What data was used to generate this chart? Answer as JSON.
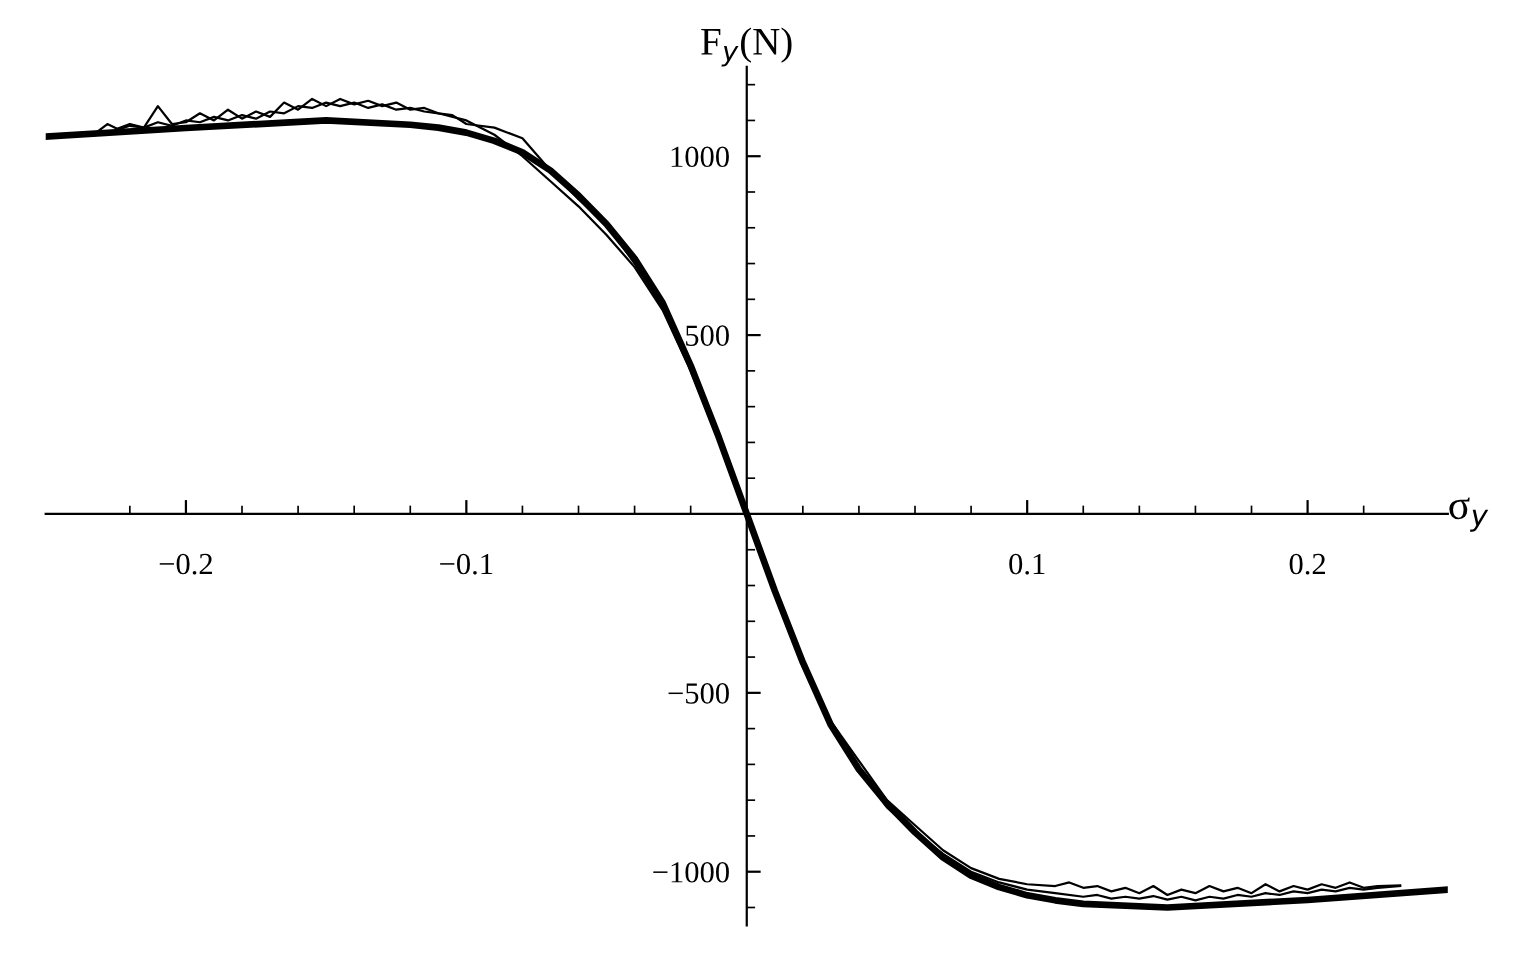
{
  "chart_data": {
    "type": "line",
    "xlabel": "σ$_{y}$",
    "ylabel": "F$_{y}$(N)",
    "xlim": [
      -0.25,
      0.25
    ],
    "ylim": [
      -1150,
      1250
    ],
    "xticks": [
      {
        "value": -0.2,
        "label": "−0.2"
      },
      {
        "value": -0.1,
        "label": "−0.1"
      },
      0.1,
      0.2,
      {
        "value": -0.22,
        "label": null
      },
      {
        "value": -0.18,
        "label": null
      },
      {
        "value": -0.16,
        "label": null
      },
      {
        "value": -0.14,
        "label": null
      },
      {
        "value": -0.12,
        "label": null
      },
      {
        "value": -0.08,
        "label": null
      },
      {
        "value": -0.06,
        "label": null
      },
      {
        "value": -0.04,
        "label": null
      },
      {
        "value": -0.02,
        "label": null
      },
      {
        "value": 0.02,
        "label": null
      },
      {
        "value": 0.04,
        "label": null
      },
      {
        "value": 0.06,
        "label": null
      },
      {
        "value": 0.08,
        "label": null
      },
      {
        "value": 0.12,
        "label": null
      },
      {
        "value": 0.14,
        "label": null
      },
      {
        "value": 0.16,
        "label": null
      },
      {
        "value": 0.18,
        "label": null
      },
      {
        "value": 0.22,
        "label": null
      }
    ],
    "yticks": [
      {
        "value": -1000,
        "label": "−1000"
      },
      {
        "value": -500,
        "label": "−500"
      },
      500,
      1000,
      {
        "value": -1100,
        "label": null
      },
      {
        "value": -900,
        "label": null
      },
      {
        "value": -800,
        "label": null
      },
      {
        "value": -700,
        "label": null
      },
      {
        "value": -600,
        "label": null
      },
      {
        "value": -400,
        "label": null
      },
      {
        "value": -300,
        "label": null
      },
      {
        "value": -200,
        "label": null
      },
      {
        "value": -100,
        "label": null
      },
      {
        "value": 100,
        "label": null
      },
      {
        "value": 200,
        "label": null
      },
      {
        "value": 300,
        "label": null
      },
      {
        "value": 400,
        "label": null
      },
      {
        "value": 600,
        "label": null
      },
      {
        "value": 700,
        "label": null
      },
      {
        "value": 800,
        "label": null
      },
      {
        "value": 900,
        "label": null
      },
      {
        "value": 1100,
        "label": null
      },
      {
        "value": 1200,
        "label": null
      }
    ],
    "grid": false,
    "legend": false,
    "marker": "none",
    "line_style": "solid",
    "series": [
      {
        "color": "#000000",
        "x": [
          -0.25,
          -0.2,
          -0.15,
          -0.12,
          -0.11,
          -0.1,
          -0.09,
          -0.08,
          -0.07,
          -0.06,
          -0.05,
          -0.04,
          -0.03,
          -0.02,
          -0.01,
          0,
          0.01,
          0.02,
          0.03,
          0.04,
          0.05,
          0.06,
          0.07,
          0.08,
          0.09,
          0.1,
          0.11,
          0.12,
          0.15,
          0.2,
          0.25
        ],
        "values": [
          1055,
          1079,
          1100,
          1088,
          1080,
          1066,
          1043,
          1011,
          960,
          890,
          810,
          714,
          590,
          415,
          215,
          0,
          -215,
          -415,
          -590,
          -714,
          -810,
          -890,
          -960,
          -1011,
          -1043,
          -1066,
          -1080,
          -1090,
          -1100,
          -1079,
          -1050
        ]
      },
      {
        "color": "#000000",
        "x": [
          -0.233,
          -0.228,
          -0.224,
          -0.22,
          -0.215,
          -0.21,
          -0.205,
          -0.2,
          -0.195,
          -0.19,
          -0.185,
          -0.18,
          -0.175,
          -0.17,
          -0.165,
          -0.16,
          -0.155,
          -0.15,
          -0.145,
          -0.14,
          -0.135,
          -0.13,
          -0.125,
          -0.12,
          -0.115,
          -0.11,
          -0.105,
          -0.1,
          -0.09,
          -0.08,
          -0.07,
          -0.06,
          -0.05,
          -0.04,
          -0.03,
          -0.02,
          -0.01,
          0,
          0.01,
          0.02,
          0.03,
          0.04,
          0.05,
          0.06,
          0.07,
          0.08,
          0.09,
          0.1,
          0.11,
          0.115,
          0.12,
          0.125,
          0.13,
          0.135,
          0.14,
          0.145,
          0.15,
          0.155,
          0.16,
          0.165,
          0.17,
          0.175,
          0.18,
          0.185,
          0.19,
          0.195,
          0.2,
          0.205,
          0.21,
          0.215,
          0.22,
          0.225,
          0.233
        ],
        "values": [
          1060,
          1090,
          1075,
          1085,
          1080,
          1140,
          1090,
          1095,
          1120,
          1100,
          1130,
          1105,
          1125,
          1110,
          1150,
          1130,
          1160,
          1140,
          1160,
          1145,
          1155,
          1140,
          1150,
          1130,
          1135,
          1120,
          1115,
          1090,
          1080,
          1050,
          960,
          880,
          810,
          700,
          580,
          410,
          210,
          0,
          -220,
          -420,
          -580,
          -690,
          -800,
          -870,
          -940,
          -990,
          -1020,
          -1035,
          -1040,
          -1030,
          -1045,
          -1040,
          -1055,
          -1045,
          -1060,
          -1040,
          -1065,
          -1050,
          -1060,
          -1040,
          -1055,
          -1045,
          -1060,
          -1035,
          -1055,
          -1040,
          -1050,
          -1035,
          -1045,
          -1030,
          -1045,
          -1040,
          -1038
        ]
      },
      {
        "color": "#000000",
        "x": [
          -0.225,
          -0.22,
          -0.215,
          -0.21,
          -0.205,
          -0.2,
          -0.195,
          -0.19,
          -0.185,
          -0.18,
          -0.175,
          -0.17,
          -0.165,
          -0.16,
          -0.155,
          -0.15,
          -0.145,
          -0.14,
          -0.135,
          -0.13,
          -0.125,
          -0.12,
          -0.115,
          -0.11,
          -0.1,
          -0.09,
          -0.08,
          -0.07,
          -0.06,
          -0.05,
          -0.04,
          -0.03,
          -0.02,
          -0.01,
          0,
          0.01,
          0.02,
          0.03,
          0.04,
          0.05,
          0.06,
          0.07,
          0.08,
          0.09,
          0.1,
          0.11,
          0.12,
          0.125,
          0.13,
          0.135,
          0.14,
          0.145,
          0.15,
          0.155,
          0.16,
          0.165,
          0.17,
          0.175,
          0.18,
          0.185,
          0.19,
          0.195,
          0.2,
          0.205,
          0.21,
          0.215,
          0.22,
          0.225,
          0.233
        ],
        "values": [
          1075,
          1090,
          1080,
          1095,
          1085,
          1100,
          1095,
          1110,
          1100,
          1115,
          1105,
          1125,
          1120,
          1140,
          1135,
          1150,
          1140,
          1150,
          1135,
          1145,
          1130,
          1135,
          1125,
          1120,
          1100,
          1060,
          1000,
          930,
          860,
          780,
          690,
          570,
          400,
          205,
          0,
          -215,
          -415,
          -585,
          -710,
          -820,
          -890,
          -950,
          -1000,
          -1030,
          -1050,
          -1060,
          -1070,
          -1065,
          -1075,
          -1070,
          -1075,
          -1068,
          -1078,
          -1070,
          -1080,
          -1070,
          -1075,
          -1065,
          -1070,
          -1060,
          -1065,
          -1055,
          -1060,
          -1050,
          -1055,
          -1045,
          -1050,
          -1045,
          -1040
        ]
      }
    ]
  }
}
